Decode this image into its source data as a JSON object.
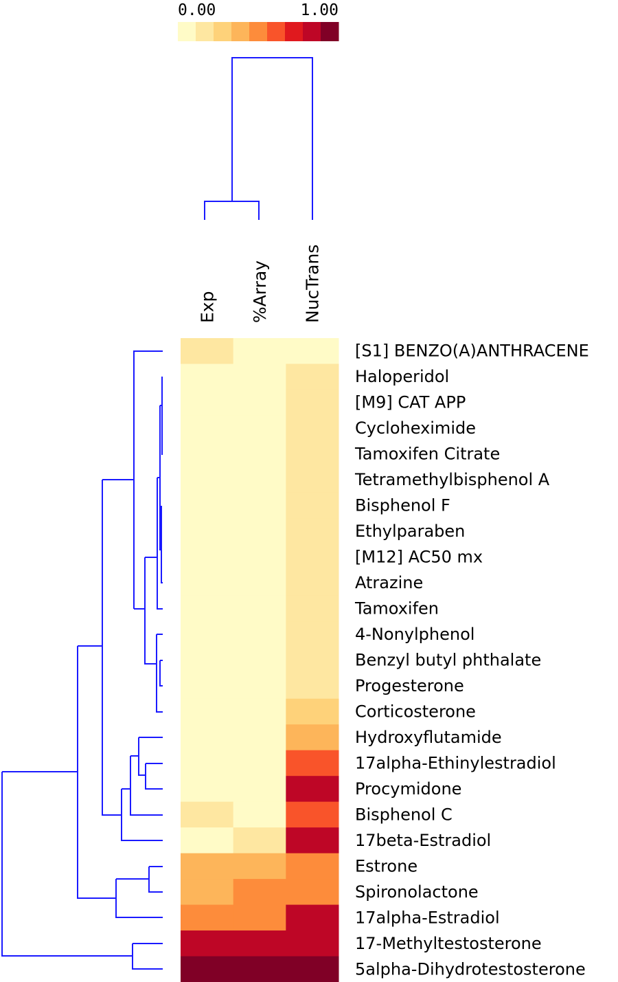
{
  "chart_data": {
    "type": "heatmap",
    "color_scale": {
      "min_label": "0.00",
      "max_label": "1.00",
      "range": [
        0,
        1
      ],
      "colors": [
        "#fffbc7",
        "#fee7a1",
        "#fed27a",
        "#fdb55a",
        "#fd8c3b",
        "#f9542a",
        "#e0191e",
        "#be0626",
        "#800026"
      ]
    },
    "columns": [
      "Exp",
      "%Array",
      "NucTrans"
    ],
    "rows": [
      "[S1] BENZO(A)ANTHRACENE",
      "Haloperidol",
      "[M9] CAT APP",
      "Cycloheximide",
      "Tamoxifen Citrate",
      "Tetramethylbisphenol A",
      "Bisphenol F",
      "Ethylparaben",
      "[M12] AC50 mx",
      "Atrazine",
      "Tamoxifen",
      "4-Nonylphenol",
      "Benzyl butyl phthalate",
      "Progesterone",
      "Corticosterone",
      "Hydroxyflutamide",
      "17alpha-Ethinylestradiol",
      "Procymidone",
      "Bisphenol C",
      "17beta-Estradiol",
      "Estrone",
      "Spironolactone",
      "17alpha-Estradiol",
      "17-Methyltestosterone",
      "5alpha-Dihydrotestosterone"
    ],
    "values": [
      [
        0.12,
        0.05,
        0.05
      ],
      [
        0.05,
        0.05,
        0.12
      ],
      [
        0.05,
        0.05,
        0.12
      ],
      [
        0.05,
        0.05,
        0.12
      ],
      [
        0.05,
        0.05,
        0.12
      ],
      [
        0.05,
        0.05,
        0.12
      ],
      [
        0.05,
        0.05,
        0.12
      ],
      [
        0.05,
        0.05,
        0.12
      ],
      [
        0.05,
        0.05,
        0.12
      ],
      [
        0.05,
        0.05,
        0.12
      ],
      [
        0.05,
        0.05,
        0.12
      ],
      [
        0.05,
        0.05,
        0.2
      ],
      [
        0.05,
        0.05,
        0.2
      ],
      [
        0.05,
        0.05,
        0.2
      ],
      [
        0.05,
        0.05,
        0.28
      ],
      [
        0.05,
        0.05,
        0.38
      ],
      [
        0.05,
        0.05,
        0.66
      ],
      [
        0.05,
        0.05,
        0.78
      ],
      [
        0.22,
        0.05,
        0.66
      ],
      [
        0.03,
        0.12,
        0.86
      ],
      [
        0.38,
        0.38,
        0.48
      ],
      [
        0.38,
        0.48,
        0.48
      ],
      [
        0.48,
        0.48,
        0.86
      ],
      [
        0.86,
        0.86,
        0.86
      ],
      [
        0.98,
        0.98,
        0.98
      ]
    ],
    "column_dendrogram": {
      "leaves": [
        "Exp",
        "%Array",
        "NucTrans"
      ],
      "merges": [
        {
          "left": "Exp",
          "right": "%Array",
          "height": 0.12
        },
        {
          "left": "Exp+%Array",
          "right": "NucTrans",
          "height": 1.0
        }
      ]
    },
    "row_dendrogram": {
      "type": "hierarchical clustering (leaf order as listed)",
      "max_height": 1.0
    }
  }
}
